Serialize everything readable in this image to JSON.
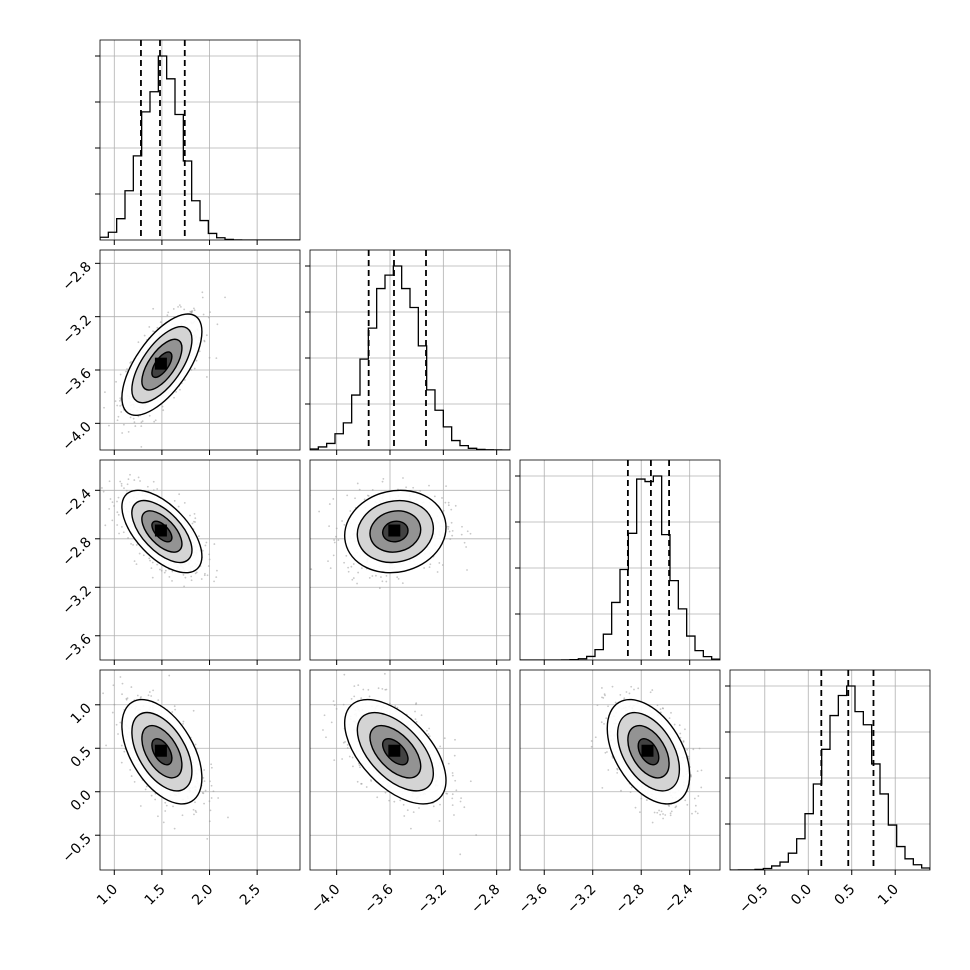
{
  "chart_data": {
    "type": "corner",
    "parameters": [
      {
        "range": [
          0.85,
          2.95
        ],
        "ticks": [
          "1.0",
          "1.5",
          "2.0",
          "2.5"
        ],
        "tick_values": [
          1.0,
          1.5,
          2.0,
          2.5
        ],
        "quantiles": [
          1.28,
          1.48,
          1.74
        ],
        "center": 1.5,
        "sd": 0.21
      },
      {
        "range": [
          -4.2,
          -2.7
        ],
        "ticks": [
          "−4.0",
          "−3.6",
          "−3.2",
          "−2.8"
        ],
        "tick_values": [
          -4.0,
          -3.6,
          -3.2,
          -2.8
        ],
        "quantiles": [
          -3.76,
          -3.57,
          -3.33
        ],
        "center": -3.56,
        "sd": 0.19
      },
      {
        "range": [
          -3.8,
          -2.15
        ],
        "ticks": [
          "−3.6",
          "−3.2",
          "−2.8",
          "−2.4"
        ],
        "tick_values": [
          -3.6,
          -3.2,
          -2.8,
          -2.4
        ],
        "quantiles": [
          -2.91,
          -2.72,
          -2.57
        ],
        "center": -2.74,
        "sd": 0.17
      },
      {
        "range": [
          -0.9,
          1.4
        ],
        "ticks": [
          "−0.5",
          "0.0",
          "0.5",
          "1.0"
        ],
        "tick_values": [
          -0.5,
          0.0,
          0.5,
          1.0
        ],
        "quantiles": [
          0.15,
          0.46,
          0.75
        ],
        "center": 0.46,
        "sd": 0.3
      }
    ],
    "correlations": [
      [
        1.0,
        0.65,
        -0.6,
        -0.5
      ],
      [
        0.65,
        1.0,
        0.1,
        -0.55
      ],
      [
        -0.6,
        0.1,
        1.0,
        -0.45
      ],
      [
        -0.5,
        -0.55,
        -0.45,
        1.0
      ]
    ],
    "contour_levels_sigma": [
      0.5,
      1.0,
      1.5,
      2.0
    ],
    "grid": true,
    "colors": {
      "line": "#000000",
      "grid": "#b0b0b0",
      "points": "#9a9a9a"
    }
  }
}
